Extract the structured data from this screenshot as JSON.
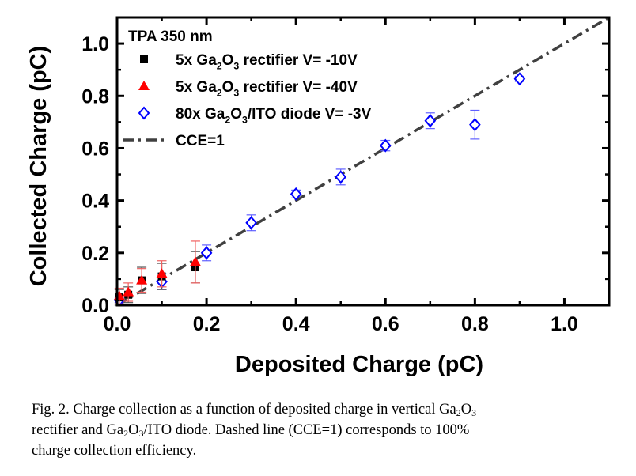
{
  "chart_data": {
    "type": "scatter",
    "xlabel": "Deposited Charge (pC)",
    "ylabel": "Collected Charge (pC)",
    "xlim": [
      0,
      1.1
    ],
    "ylim": [
      0,
      1.1
    ],
    "xticks": [
      "0.0",
      "0.2",
      "0.4",
      "0.6",
      "0.8",
      "1.0"
    ],
    "yticks": [
      "0.0",
      "0.2",
      "0.4",
      "0.6",
      "0.8",
      "1.0"
    ],
    "grid": false,
    "legend_title": "TPA 350 nm",
    "legend_position": "top-left",
    "series": [
      {
        "name": [
          {
            "t": "5x Ga"
          },
          {
            "t": "2",
            "sub": true
          },
          {
            "t": "O"
          },
          {
            "t": "3",
            "sub": true
          },
          {
            "t": " rectifier V= -10V"
          }
        ],
        "marker": "square",
        "color": "#000000",
        "x": [
          0.005,
          0.025,
          0.055,
          0.1,
          0.175
        ],
        "y": [
          0.03,
          0.04,
          0.095,
          0.11,
          0.145
        ],
        "err": [
          0.03,
          0.03,
          0.05,
          0.05,
          0.06
        ]
      },
      {
        "name": [
          {
            "t": "5x Ga"
          },
          {
            "t": "2",
            "sub": true
          },
          {
            "t": "O"
          },
          {
            "t": "3",
            "sub": true
          },
          {
            "t": " rectifier V= -40V"
          }
        ],
        "marker": "triangle",
        "color": "#ff0000",
        "x": [
          0.005,
          0.025,
          0.055,
          0.1,
          0.175
        ],
        "y": [
          0.035,
          0.05,
          0.095,
          0.12,
          0.165
        ],
        "err": [
          0.03,
          0.035,
          0.045,
          0.05,
          0.08
        ]
      },
      {
        "name": [
          {
            "t": "80x Ga"
          },
          {
            "t": "2",
            "sub": true
          },
          {
            "t": "O"
          },
          {
            "t": "3",
            "sub": true
          },
          {
            "t": "/ITO diode V= -3V"
          }
        ],
        "marker": "diamond",
        "color": "#0000ff",
        "x": [
          0.005,
          0.1,
          0.2,
          0.3,
          0.4,
          0.5,
          0.6,
          0.7,
          0.8,
          0.9
        ],
        "y": [
          0.02,
          0.09,
          0.2,
          0.315,
          0.425,
          0.49,
          0.61,
          0.705,
          0.69,
          0.865
        ],
        "err": [
          0.01,
          0.03,
          0.03,
          0.03,
          0.015,
          0.03,
          0.02,
          0.03,
          0.055,
          0.01
        ]
      },
      {
        "name": [
          {
            "t": "CCE=1"
          }
        ],
        "marker": "dashdot-line",
        "color": "#404040",
        "x": [
          0,
          1.1
        ],
        "y": [
          0,
          1.1
        ]
      }
    ]
  },
  "caption": {
    "lines": [
      [
        {
          "t": "Fig. 2.  Charge collection as a function of deposited charge in vertical Ga"
        },
        {
          "t": "2",
          "sub": true
        },
        {
          "t": "O"
        },
        {
          "t": "3",
          "sub": true
        }
      ],
      [
        {
          "t": "rectifier and Ga"
        },
        {
          "t": "2",
          "sub": true
        },
        {
          "t": "O"
        },
        {
          "t": "3",
          "sub": true
        },
        {
          "t": "/ITO diode. Dashed line (CCE=1) corresponds to 100%"
        }
      ],
      [
        {
          "t": "charge collection efficiency."
        }
      ]
    ]
  }
}
